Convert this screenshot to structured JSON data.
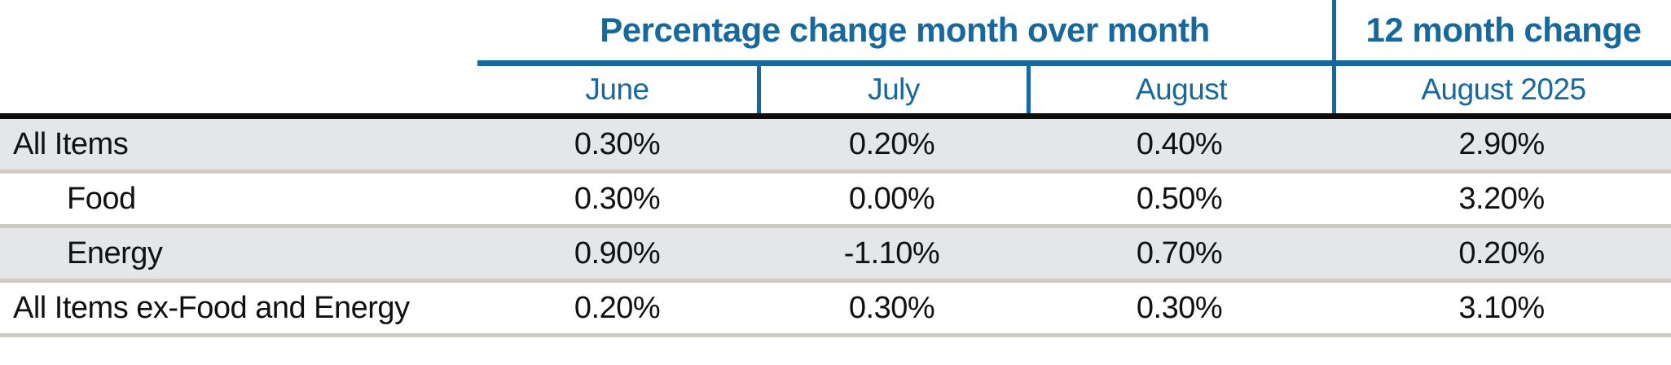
{
  "table": {
    "group_headers": [
      {
        "label": "Percentage change month over month"
      },
      {
        "label": "12 month change"
      }
    ],
    "column_headers": [
      "June",
      "July",
      "August",
      "August 2025"
    ],
    "rows": [
      {
        "label": "All Items",
        "values": [
          "0.30%",
          "0.20%",
          "0.40%",
          "2.90%"
        ]
      },
      {
        "label": "Food",
        "values": [
          "0.30%",
          "0.00%",
          "0.50%",
          "3.20%"
        ]
      },
      {
        "label": "Energy",
        "values": [
          "0.90%",
          "-1.10%",
          "0.70%",
          "0.20%"
        ]
      },
      {
        "label": "All Items ex-Food and Energy",
        "values": [
          "0.20%",
          "0.30%",
          "0.30%",
          "3.10%"
        ]
      }
    ]
  },
  "colors": {
    "accent_blue": "#17689C",
    "alt_row_gray": "#E5E6E7",
    "separator_tan": "#D1CAC1",
    "rule_black": "#0E0E0E"
  },
  "chart_data": {
    "type": "table",
    "title": "Percentage change month over month and 12 month change",
    "column_groups": [
      {
        "label": "Percentage change month over month",
        "columns": [
          "June",
          "July",
          "August"
        ]
      },
      {
        "label": "12 month change",
        "columns": [
          "August 2025"
        ]
      }
    ],
    "columns": [
      "",
      "June",
      "July",
      "August",
      "August 2025"
    ],
    "rows": [
      {
        "label": "All Items",
        "june": 0.3,
        "july": 0.2,
        "august": 0.4,
        "twelve_month_august_2025": 2.9
      },
      {
        "label": "Food",
        "june": 0.3,
        "july": 0.0,
        "august": 0.5,
        "twelve_month_august_2025": 3.2
      },
      {
        "label": "Energy",
        "june": 0.9,
        "july": -1.1,
        "august": 0.7,
        "twelve_month_august_2025": 0.2
      },
      {
        "label": "All Items ex-Food and Energy",
        "june": 0.2,
        "july": 0.3,
        "august": 0.3,
        "twelve_month_august_2025": 3.1
      }
    ],
    "units": "percent",
    "layout": "alternating row shading, month columns grouped under spanning header"
  }
}
